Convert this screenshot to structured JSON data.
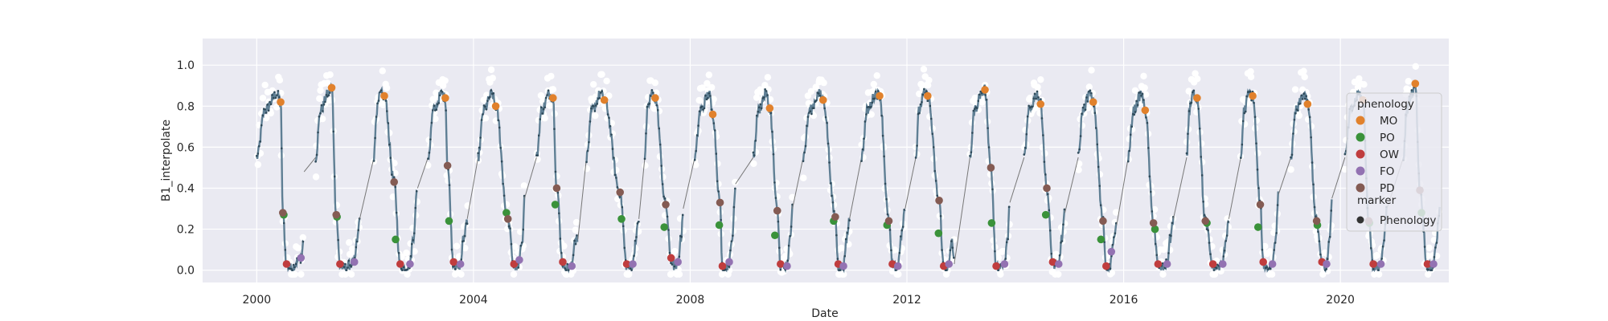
{
  "chart_data": {
    "type": "scatter",
    "title": "",
    "xlabel": "Date",
    "ylabel": "B1_interpolate",
    "xlim": [
      "1999-01-01",
      "2022-01-01"
    ],
    "ylim": [
      -0.06,
      1.13
    ],
    "x_ticks": [
      "2000",
      "2004",
      "2008",
      "2012",
      "2016",
      "2020"
    ],
    "x_tick_dates": [
      "2000-01-01",
      "2004-01-01",
      "2008-01-01",
      "2012-01-01",
      "2016-01-01",
      "2020-01-01"
    ],
    "y_ticks": [
      "0.0",
      "0.2",
      "0.4",
      "0.6",
      "0.8",
      "1.0"
    ],
    "y_tick_values": [
      0.0,
      0.2,
      0.4,
      0.6,
      0.8,
      1.0
    ],
    "grid": true,
    "legend_position": "right",
    "legend": {
      "hue_title": "phenology",
      "marker_title": "marker",
      "marker_entry": "Phenology"
    },
    "colors": {
      "background": "#eaeaf2",
      "grid": "#ffffff",
      "curve": "#5f7f94",
      "raw_points": "#ffffff",
      "MO": "#e1812c",
      "PO": "#3a923a",
      "OW": "#c03d3e",
      "FO": "#9372b2",
      "PD": "#845b53",
      "marker": "#333333"
    },
    "categories": [
      "MO",
      "PO",
      "OW",
      "FO",
      "PD"
    ],
    "seasons": [
      {
        "start": "2000-01-01",
        "mo": "2000-06-10",
        "mo_v": 0.82,
        "pd": "2000-06-25",
        "pd_v": 0.28,
        "po": "2000-07-01",
        "po_v": 0.27,
        "ow": "2000-07-20",
        "ow_v": 0.03,
        "fo": "2000-10-25",
        "fo_v": 0.06,
        "gap_start": "2000-11-15",
        "gap_start_v": 0.48,
        "next": "2001-02-01"
      },
      {
        "start": "2001-02-01",
        "mo": "2001-05-20",
        "mo_v": 0.89,
        "pd": "2001-06-20",
        "pd_v": 0.27,
        "po": "2001-06-25",
        "po_v": 0.26,
        "ow": "2001-07-15",
        "ow_v": 0.03,
        "fo": "2001-10-20",
        "fo_v": 0.04,
        "gap_start": "2001-11-25",
        "gap_start_v": 0.25,
        "next": "2002-03-01"
      },
      {
        "start": "2002-03-01",
        "mo": "2002-05-10",
        "mo_v": 0.85,
        "pd": "2002-07-15",
        "pd_v": 0.43,
        "po": "2002-07-25",
        "po_v": 0.15,
        "ow": "2002-08-25",
        "ow_v": 0.03,
        "fo": "2002-10-30",
        "fo_v": 0.03,
        "gap_start": "2002-12-20",
        "gap_start_v": 0.4,
        "next": "2003-03-01"
      },
      {
        "start": "2003-03-01",
        "mo": "2003-06-25",
        "mo_v": 0.84,
        "pd": "2003-07-10",
        "pd_v": 0.51,
        "po": "2003-07-20",
        "po_v": 0.24,
        "ow": "2003-08-20",
        "ow_v": 0.04,
        "fo": "2003-10-05",
        "fo_v": 0.03,
        "gap_start": "2003-11-20",
        "gap_start_v": 0.25,
        "next": "2004-02-01"
      },
      {
        "start": "2004-02-01",
        "mo": "2004-05-30",
        "mo_v": 0.8,
        "pd": "2004-08-20",
        "pd_v": 0.25,
        "po": "2004-08-10",
        "po_v": 0.28,
        "ow": "2004-09-30",
        "ow_v": 0.03,
        "fo": "2004-11-05",
        "fo_v": 0.05,
        "gap_start": "2004-12-10",
        "gap_start_v": 0.35,
        "next": "2005-03-01"
      },
      {
        "start": "2005-03-01",
        "mo": "2005-06-20",
        "mo_v": 0.84,
        "pd": "2005-07-15",
        "pd_v": 0.4,
        "po": "2005-07-05",
        "po_v": 0.32,
        "ow": "2005-08-25",
        "ow_v": 0.04,
        "fo": "2005-10-25",
        "fo_v": 0.02,
        "gap_start": "2005-12-05",
        "gap_start_v": 0.15,
        "next": "2006-02-01"
      },
      {
        "start": "2006-02-01",
        "mo": "2006-06-01",
        "mo_v": 0.83,
        "pd": "2006-09-15",
        "pd_v": 0.38,
        "po": "2006-09-25",
        "po_v": 0.25,
        "ow": "2006-10-30",
        "ow_v": 0.03,
        "fo": "2006-12-10",
        "fo_v": 0.03,
        "gap_start": "2007-01-20",
        "gap_start_v": 0.25,
        "next": "2007-03-01"
      },
      {
        "start": "2007-03-01",
        "mo": "2007-05-10",
        "mo_v": 0.84,
        "pd": "2007-07-20",
        "pd_v": 0.32,
        "po": "2007-07-10",
        "po_v": 0.21,
        "ow": "2007-08-25",
        "ow_v": 0.06,
        "fo": "2007-10-10",
        "fo_v": 0.04,
        "gap_start": "2007-11-15",
        "gap_start_v": 0.3,
        "next": "2008-02-01"
      },
      {
        "start": "2008-02-01",
        "mo": "2008-06-01",
        "mo_v": 0.76,
        "pd": "2008-07-20",
        "pd_v": 0.33,
        "po": "2008-07-15",
        "po_v": 0.22,
        "ow": "2008-08-05",
        "ow_v": 0.02,
        "fo": "2008-09-20",
        "fo_v": 0.04,
        "gap_start": "2008-11-01",
        "gap_start_v": 0.42,
        "next": "2009-03-01"
      },
      {
        "start": "2009-03-01",
        "mo": "2009-06-20",
        "mo_v": 0.79,
        "pd": "2009-08-10",
        "pd_v": 0.29,
        "po": "2009-07-25",
        "po_v": 0.17,
        "ow": "2009-09-01",
        "ow_v": 0.03,
        "fo": "2009-10-15",
        "fo_v": 0.02,
        "gap_start": "2009-11-20",
        "gap_start_v": 0.3,
        "next": "2010-02-01"
      },
      {
        "start": "2010-02-01",
        "mo": "2010-06-15",
        "mo_v": 0.83,
        "pd": "2010-09-05",
        "pd_v": 0.26,
        "po": "2010-08-25",
        "po_v": 0.24,
        "ow": "2010-09-25",
        "ow_v": 0.03,
        "fo": "2010-10-30",
        "fo_v": 0.02,
        "gap_start": "2010-12-10",
        "gap_start_v": 0.25,
        "next": "2011-03-01"
      },
      {
        "start": "2011-03-01",
        "mo": "2011-07-01",
        "mo_v": 0.85,
        "pd": "2011-09-01",
        "pd_v": 0.24,
        "po": "2011-08-20",
        "po_v": 0.22,
        "ow": "2011-09-25",
        "ow_v": 0.03,
        "fo": "2011-11-01",
        "fo_v": 0.02,
        "gap_start": "2011-12-20",
        "gap_start_v": 0.3,
        "next": "2012-03-01"
      },
      {
        "start": "2012-03-01",
        "mo": "2012-05-20",
        "mo_v": 0.85,
        "pd": "2012-08-05",
        "pd_v": 0.34,
        "po": "2012-08-01",
        "po_v": 0.18,
        "ow": "2012-09-05",
        "ow_v": 0.02,
        "fo": "2012-10-10",
        "fo_v": 0.03,
        "gap_start": "2012-11-15",
        "gap_start_v": 0.03,
        "next": "2013-03-01"
      },
      {
        "start": "2013-03-01",
        "mo": "2013-06-10",
        "mo_v": 0.88,
        "pd": "2013-07-20",
        "pd_v": 0.5,
        "po": "2013-07-25",
        "po_v": 0.23,
        "ow": "2013-08-25",
        "ow_v": 0.02,
        "fo": "2013-10-20",
        "fo_v": 0.03,
        "gap_start": "2013-11-25",
        "gap_start_v": 0.33,
        "next": "2014-03-01"
      },
      {
        "start": "2014-03-01",
        "mo": "2014-06-20",
        "mo_v": 0.81,
        "pd": "2014-08-01",
        "pd_v": 0.4,
        "po": "2014-07-25",
        "po_v": 0.27,
        "ow": "2014-09-10",
        "ow_v": 0.04,
        "fo": "2014-10-20",
        "fo_v": 0.03,
        "gap_start": "2014-12-01",
        "gap_start_v": 0.28,
        "next": "2015-03-01"
      },
      {
        "start": "2015-03-01",
        "mo": "2015-06-10",
        "mo_v": 0.82,
        "pd": "2015-08-15",
        "pd_v": 0.24,
        "po": "2015-08-01",
        "po_v": 0.15,
        "ow": "2015-09-05",
        "ow_v": 0.02,
        "fo": "2015-10-10",
        "fo_v": 0.09,
        "gap_start": "2015-11-15",
        "gap_start_v": 0.22,
        "next": "2016-02-01"
      },
      {
        "start": "2016-02-01",
        "mo": "2016-05-25",
        "mo_v": 0.78,
        "pd": "2016-07-20",
        "pd_v": 0.23,
        "po": "2016-07-30",
        "po_v": 0.2,
        "ow": "2016-08-20",
        "ow_v": 0.03,
        "fo": "2016-10-20",
        "fo_v": 0.03,
        "gap_start": "2016-12-01",
        "gap_start_v": 0.25,
        "next": "2017-03-01"
      },
      {
        "start": "2017-03-01",
        "mo": "2017-05-10",
        "mo_v": 0.84,
        "pd": "2017-07-05",
        "pd_v": 0.24,
        "po": "2017-07-15",
        "po_v": 0.23,
        "ow": "2017-08-25",
        "ow_v": 0.03,
        "fo": "2017-10-30",
        "fo_v": 0.03,
        "gap_start": "2017-12-10",
        "gap_start_v": 0.25,
        "next": "2018-03-01"
      },
      {
        "start": "2018-03-01",
        "mo": "2018-05-20",
        "mo_v": 0.85,
        "pd": "2018-07-10",
        "pd_v": 0.32,
        "po": "2018-06-25",
        "po_v": 0.21,
        "ow": "2018-07-30",
        "ow_v": 0.04,
        "fo": "2018-09-30",
        "fo_v": 0.03,
        "gap_start": "2018-11-10",
        "gap_start_v": 0.37,
        "next": "2019-02-01"
      },
      {
        "start": "2019-02-01",
        "mo": "2019-05-25",
        "mo_v": 0.81,
        "pd": "2019-07-25",
        "pd_v": 0.24,
        "po": "2019-07-30",
        "po_v": 0.22,
        "ow": "2019-08-30",
        "ow_v": 0.04,
        "fo": "2019-09-30",
        "fo_v": 0.03,
        "gap_start": "2019-11-05",
        "gap_start_v": 0.35,
        "next": "2020-02-01"
      },
      {
        "start": "2020-02-01",
        "mo": "2020-06-01",
        "mo_v": 0.83,
        "pd": "2020-07-10",
        "pd_v": 0.24,
        "po": "2020-07-15",
        "po_v": 0.23,
        "ow": "2020-08-10",
        "ow_v": 0.03,
        "fo": "2020-09-30",
        "fo_v": 0.03,
        "gap_start": "2020-11-10",
        "gap_start_v": 0.3,
        "next": "2021-03-01"
      },
      {
        "start": "2021-03-01",
        "mo": "2021-05-20",
        "mo_v": 0.91,
        "pd": "2021-06-20",
        "pd_v": 0.39,
        "po": "2021-07-01",
        "po_v": 0.28,
        "ow": "2021-08-10",
        "ow_v": 0.03,
        "fo": "2021-09-20",
        "fo_v": 0.03,
        "gap_start": "",
        "gap_start_v": null,
        "next": "2021-11-01"
      }
    ]
  }
}
